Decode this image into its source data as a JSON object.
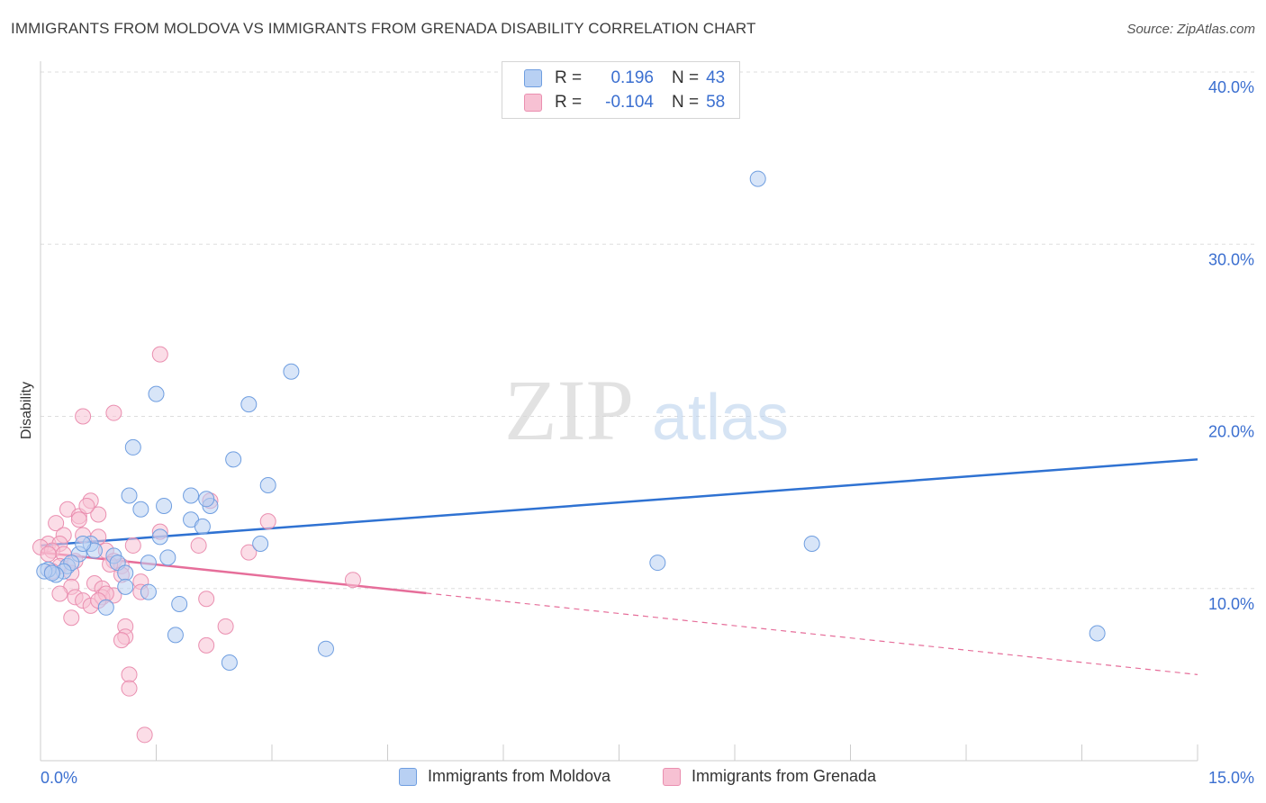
{
  "title": "IMMIGRANTS FROM MOLDOVA VS IMMIGRANTS FROM GRENADA DISABILITY CORRELATION CHART",
  "source": "Source: ZipAtlas.com",
  "watermark": {
    "zip": "ZIP",
    "atlas": "atlas"
  },
  "legend_top": {
    "rows": [
      {
        "r_label": "R =",
        "r_value": "0.196",
        "n_label": "N =",
        "n_value": "43"
      },
      {
        "r_label": "R =",
        "r_value": "-0.104",
        "n_label": "N =",
        "n_value": "58"
      }
    ]
  },
  "colors": {
    "moldova_fill": "#b8d0f3",
    "moldova_stroke": "#6f9ee0",
    "moldova_line": "#2f72d2",
    "grenada_fill": "#f7c1d3",
    "grenada_stroke": "#ea8fb0",
    "grenada_line": "#e66e9a",
    "tick_text": "#3b6fd0",
    "grid": "#dddddd"
  },
  "chart_data": {
    "type": "scatter",
    "title": "IMMIGRANTS FROM MOLDOVA VS IMMIGRANTS FROM GRENADA DISABILITY CORRELATION CHART",
    "xlabel": "",
    "ylabel": "Disability",
    "xlim": [
      0,
      15
    ],
    "ylim": [
      0,
      40
    ],
    "x_tick_labels": [
      "0.0%",
      "15.0%"
    ],
    "y_ticks": [
      10,
      20,
      30,
      40
    ],
    "y_tick_labels": [
      "10.0%",
      "20.0%",
      "30.0%",
      "40.0%"
    ],
    "grid": true,
    "legend_position": "top-center and bottom",
    "series": [
      {
        "name": "Immigrants from Moldova",
        "R": 0.196,
        "N": 43,
        "trend": {
          "x": [
            0,
            15
          ],
          "y": [
            12.5,
            17.5
          ],
          "dashed_from": null
        },
        "points": [
          [
            9.3,
            33.8
          ],
          [
            3.25,
            22.6
          ],
          [
            1.5,
            21.3
          ],
          [
            2.7,
            20.7
          ],
          [
            1.2,
            18.2
          ],
          [
            2.5,
            17.5
          ],
          [
            2.95,
            16.0
          ],
          [
            1.15,
            15.4
          ],
          [
            1.95,
            15.4
          ],
          [
            1.6,
            14.8
          ],
          [
            1.3,
            14.6
          ],
          [
            2.2,
            14.8
          ],
          [
            2.15,
            15.2
          ],
          [
            1.95,
            14.0
          ],
          [
            2.1,
            13.6
          ],
          [
            1.55,
            13.0
          ],
          [
            0.65,
            12.6
          ],
          [
            0.7,
            12.2
          ],
          [
            2.85,
            12.6
          ],
          [
            10.0,
            12.6
          ],
          [
            0.5,
            12.0
          ],
          [
            0.95,
            11.9
          ],
          [
            1.0,
            11.5
          ],
          [
            1.65,
            11.8
          ],
          [
            1.4,
            11.5
          ],
          [
            0.35,
            11.3
          ],
          [
            0.4,
            11.5
          ],
          [
            0.3,
            11.0
          ],
          [
            0.2,
            10.8
          ],
          [
            0.1,
            11.1
          ],
          [
            1.1,
            10.9
          ],
          [
            0.55,
            12.6
          ],
          [
            8.0,
            11.5
          ],
          [
            1.1,
            10.1
          ],
          [
            1.4,
            9.8
          ],
          [
            0.85,
            8.9
          ],
          [
            1.8,
            9.1
          ],
          [
            1.75,
            7.3
          ],
          [
            2.45,
            5.7
          ],
          [
            3.7,
            6.5
          ],
          [
            13.7,
            7.4
          ],
          [
            0.05,
            11.0
          ],
          [
            0.15,
            10.9
          ]
        ]
      },
      {
        "name": "Immigrants from Grenada",
        "R": -0.104,
        "N": 58,
        "trend": {
          "x": [
            0,
            15
          ],
          "y": [
            12.1,
            5.0
          ],
          "solid_until_x": 5.0
        },
        "points": [
          [
            1.55,
            23.6
          ],
          [
            0.55,
            20.0
          ],
          [
            0.95,
            20.2
          ],
          [
            0.65,
            15.1
          ],
          [
            2.2,
            15.1
          ],
          [
            0.35,
            14.6
          ],
          [
            0.75,
            14.3
          ],
          [
            0.5,
            14.2
          ],
          [
            0.2,
            13.8
          ],
          [
            0.5,
            14.0
          ],
          [
            2.95,
            13.9
          ],
          [
            0.6,
            14.8
          ],
          [
            1.55,
            13.3
          ],
          [
            0.55,
            13.1
          ],
          [
            0.75,
            13.0
          ],
          [
            0.3,
            13.1
          ],
          [
            0.1,
            12.6
          ],
          [
            0.25,
            12.6
          ],
          [
            0.0,
            12.4
          ],
          [
            0.15,
            12.2
          ],
          [
            0.1,
            12.0
          ],
          [
            0.3,
            12.0
          ],
          [
            1.2,
            12.5
          ],
          [
            2.05,
            12.5
          ],
          [
            2.7,
            12.1
          ],
          [
            0.85,
            12.2
          ],
          [
            0.45,
            11.6
          ],
          [
            0.25,
            11.3
          ],
          [
            0.95,
            11.6
          ],
          [
            1.05,
            11.3
          ],
          [
            0.15,
            11.0
          ],
          [
            0.4,
            10.9
          ],
          [
            1.05,
            10.8
          ],
          [
            0.7,
            10.3
          ],
          [
            1.3,
            10.4
          ],
          [
            4.05,
            10.5
          ],
          [
            0.8,
            10.0
          ],
          [
            0.4,
            10.1
          ],
          [
            0.25,
            9.7
          ],
          [
            0.95,
            9.6
          ],
          [
            0.45,
            9.5
          ],
          [
            0.55,
            9.3
          ],
          [
            0.65,
            9.0
          ],
          [
            0.8,
            9.5
          ],
          [
            0.85,
            9.7
          ],
          [
            0.75,
            9.3
          ],
          [
            2.15,
            9.4
          ],
          [
            1.3,
            9.8
          ],
          [
            0.4,
            8.3
          ],
          [
            1.1,
            7.8
          ],
          [
            2.4,
            7.8
          ],
          [
            1.1,
            7.2
          ],
          [
            1.05,
            7.0
          ],
          [
            2.15,
            6.7
          ],
          [
            1.15,
            5.0
          ],
          [
            1.15,
            4.2
          ],
          [
            1.35,
            1.5
          ],
          [
            0.9,
            11.4
          ]
        ]
      }
    ]
  },
  "bottom_legend": [
    "Immigrants from Moldova",
    "Immigrants from Grenada"
  ]
}
